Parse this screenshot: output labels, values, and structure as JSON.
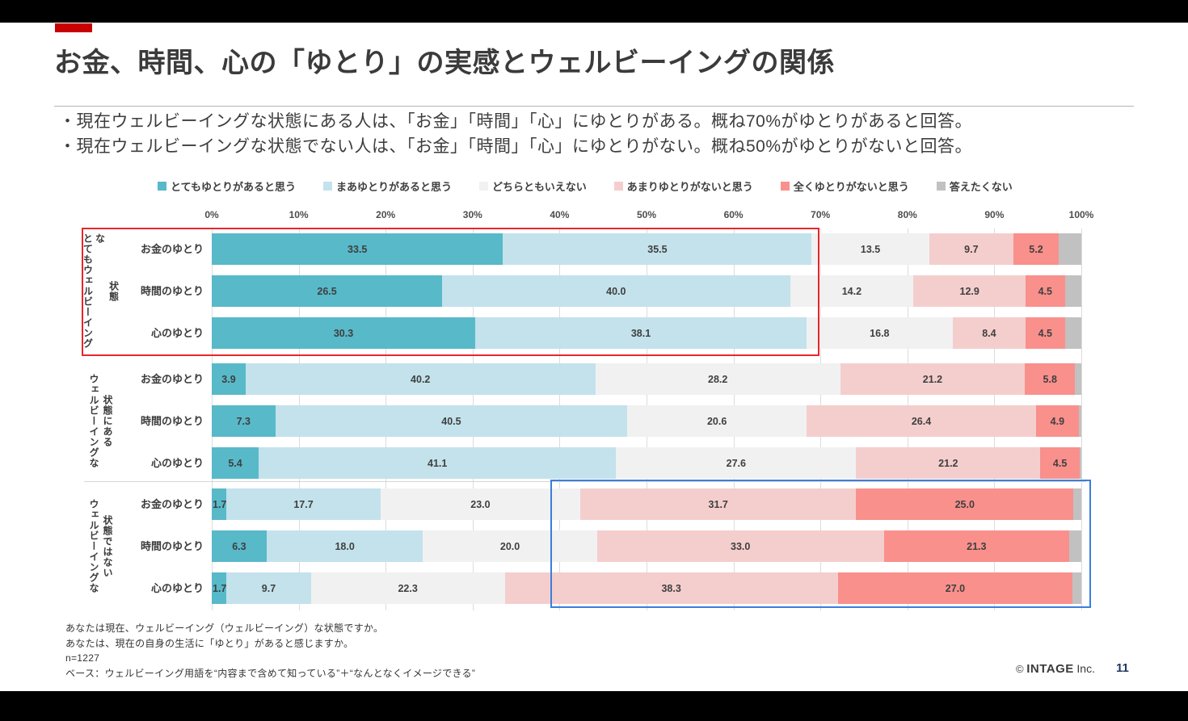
{
  "accent_color": "#c80000",
  "title": "お金、時間、心の「ゆとり」の実感とウェルビーイングの関係",
  "bullets": [
    "・現在ウェルビーイングな状態にある人は、「お金」「時間」「心」にゆとりがある。概ね70%がゆとりがあると回答。",
    "・現在ウェルビーイングな状態でない人は、「お金」「時間」「心」にゆとりがない。概ね50%がゆとりがないと回答。"
  ],
  "chart_data": {
    "type": "bar",
    "orientation": "horizontal",
    "stacked": true,
    "unit": "%",
    "xlim": [
      0,
      100
    ],
    "grid": true,
    "legend_position": "top",
    "x_ticks": [
      "0%",
      "10%",
      "20%",
      "30%",
      "40%",
      "50%",
      "60%",
      "70%",
      "80%",
      "90%",
      "100%"
    ],
    "series_labels": [
      "とてもゆとりがあると思う",
      "まあゆとりがあると思う",
      "どちらともいえない",
      "あまりゆとりがないと思う",
      "全くゆとりがないと思う",
      "答えたくない"
    ],
    "series_colors": [
      "#58b9c9",
      "#c3e2ec",
      "#f1f1f2",
      "#f4cecd",
      "#f9908c",
      "#c1c1c1"
    ],
    "unlabeled_series_index": 5,
    "groups": [
      {
        "label": "とてもウェルビーイングな状態",
        "label_lines": [
          "とてもウェルビーイングな",
          "状態"
        ],
        "rows": [
          {
            "label": "お金のゆとり",
            "values": [
              33.5,
              35.5,
              13.5,
              9.7,
              5.2,
              2.6
            ]
          },
          {
            "label": "時間のゆとり",
            "values": [
              26.5,
              40.0,
              14.2,
              12.9,
              4.5,
              1.9
            ]
          },
          {
            "label": "心のゆとり",
            "values": [
              30.3,
              38.1,
              16.8,
              8.4,
              4.5,
              1.9
            ]
          }
        ]
      },
      {
        "label": "ウェルビーイングな状態にある",
        "label_lines": [
          "ウェルビーイングな",
          "状態にある"
        ],
        "rows": [
          {
            "label": "お金のゆとり",
            "values": [
              3.9,
              40.2,
              28.2,
              21.2,
              5.8,
              0.7
            ]
          },
          {
            "label": "時間のゆとり",
            "values": [
              7.3,
              40.5,
              20.6,
              26.4,
              4.9,
              0.3
            ]
          },
          {
            "label": "心のゆとり",
            "values": [
              5.4,
              41.1,
              27.6,
              21.2,
              4.5,
              0.2
            ]
          }
        ]
      },
      {
        "label": "ウェルビーイングな状態ではない",
        "label_lines": [
          "ウェルビーイングな",
          "状態ではない"
        ],
        "rows": [
          {
            "label": "お金のゆとり",
            "values": [
              1.7,
              17.7,
              23.0,
              31.7,
              25.0,
              0.9
            ]
          },
          {
            "label": "時間のゆとり",
            "values": [
              6.3,
              18.0,
              20.0,
              33.0,
              21.3,
              1.4
            ]
          },
          {
            "label": "心のゆとり",
            "values": [
              1.7,
              9.7,
              22.3,
              38.3,
              27.0,
              1.0
            ]
          }
        ]
      }
    ],
    "highlight_colors": {
      "red_box": "#e8262a",
      "blue_box": "#3b7ddd"
    }
  },
  "footer": {
    "notes": [
      "あなたは現在、ウェルビーイング（ウェルビーイング）な状態ですか。",
      "あなたは、現在の自身の生活に「ゆとり」があると感じますか。",
      "n=1227",
      "ベース：ウェルビーイング用語を“内容まで含めて知っている”＋“なんとなくイメージできる”"
    ],
    "copyright_symbol": "©",
    "copyright_brand": "INTAGE",
    "copyright_suffix": "Inc.",
    "page_number": "11"
  }
}
